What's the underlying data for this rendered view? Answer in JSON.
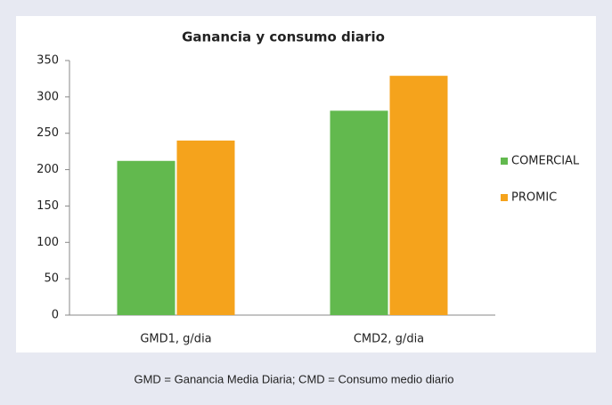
{
  "chart_data": {
    "type": "bar",
    "title": "Ganancia y consumo diario",
    "categories": [
      "GMD1, g/dia",
      "CMD2, g/dia"
    ],
    "series": [
      {
        "name": "COMERCIAL",
        "color": "#62b94e",
        "values": [
          212,
          281
        ]
      },
      {
        "name": "PROMIC",
        "color": "#f5a31c",
        "values": [
          240,
          329
        ]
      }
    ],
    "ylim": [
      0,
      350
    ],
    "yticks": [
      0,
      50,
      100,
      150,
      200,
      250,
      300,
      350
    ],
    "grid": false,
    "legend": "right",
    "caption": "GMD = Ganancia Media Diaria; CMD = Consumo medio diario"
  }
}
